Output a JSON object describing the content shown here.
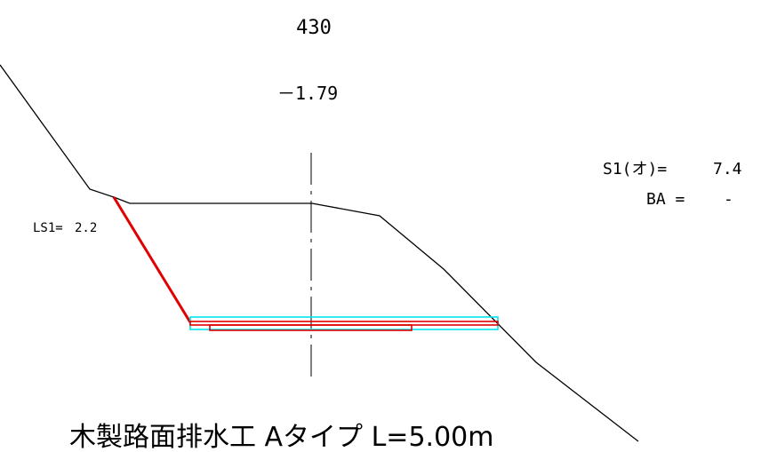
{
  "station": "430",
  "centerline_elevation_diff": "－1.79",
  "slope_length_label": "LS1=",
  "slope_length_value": "2.2",
  "cut_area_label": "S1(オ)=",
  "cut_area_value": "7.4",
  "ba_label": "BA =",
  "ba_value": "-",
  "title": "木製路面排水工 Aタイプ L=5.00m",
  "colors": {
    "ground_line": "#000000",
    "slope_line": "#e00000",
    "structure_outer": "#00e5ee",
    "structure_inner": "#e00000",
    "centerline": "#000000"
  }
}
